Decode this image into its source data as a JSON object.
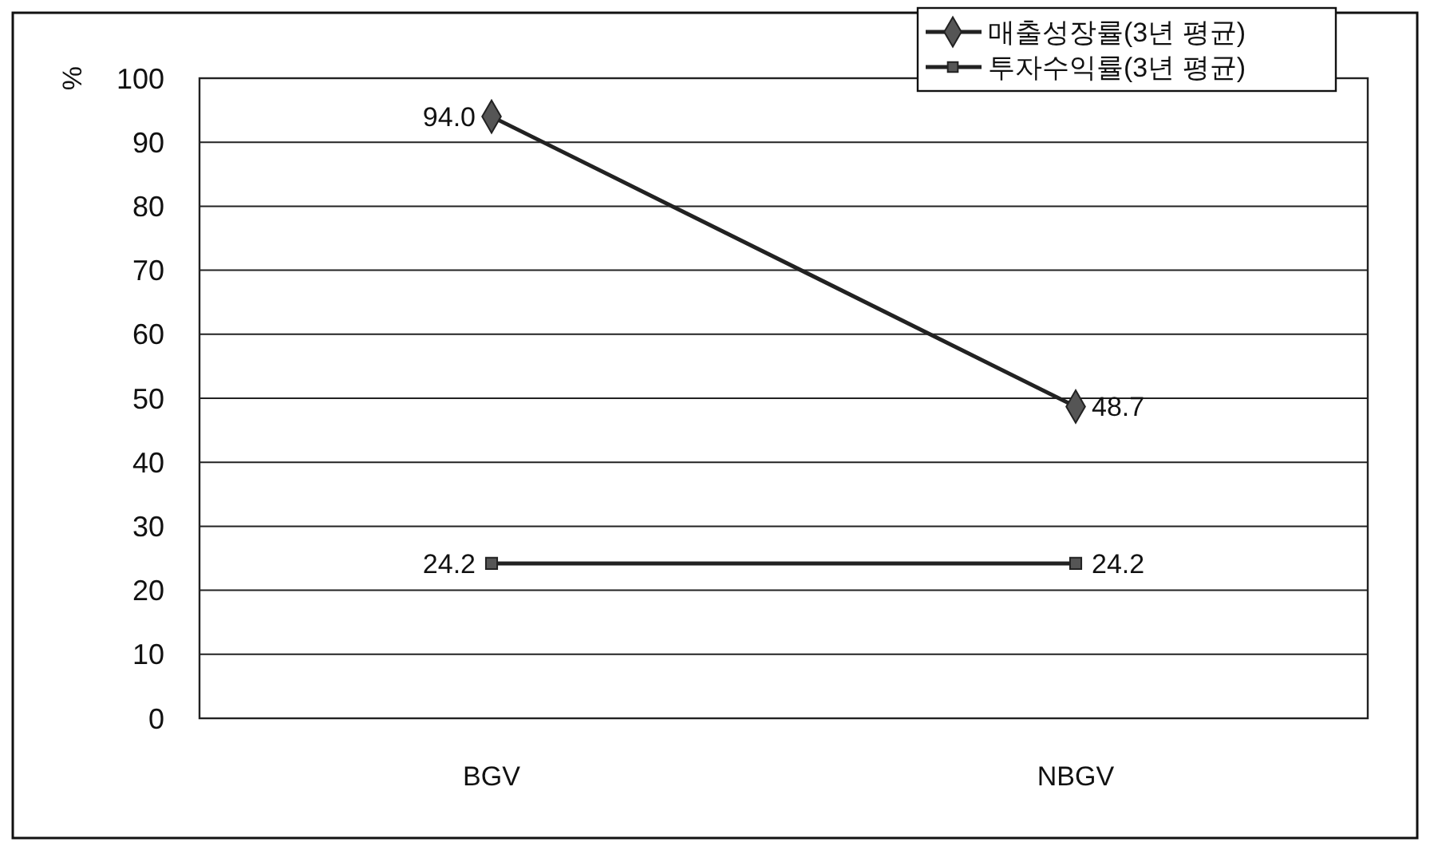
{
  "chart_data": {
    "type": "line",
    "ylabel": "%",
    "categories": [
      "BGV",
      "NBGV"
    ],
    "series": [
      {
        "name": "매출성장률(3년 평균)",
        "color": "#222222",
        "values": [
          94.0,
          48.7
        ],
        "value_labels": [
          "94.0",
          "48.7"
        ],
        "marker": "diamond"
      },
      {
        "name": "투자수익률(3년 평균)",
        "color": "#222222",
        "values": [
          24.2,
          24.2
        ],
        "value_labels": [
          "24.2",
          "24.2"
        ],
        "marker": "square"
      }
    ],
    "ylim": [
      0,
      100
    ],
    "yticks": [
      0,
      10,
      20,
      30,
      40,
      50,
      60,
      70,
      80,
      90,
      100
    ],
    "grid": "y",
    "legend": "top right",
    "line_style": "solid"
  }
}
